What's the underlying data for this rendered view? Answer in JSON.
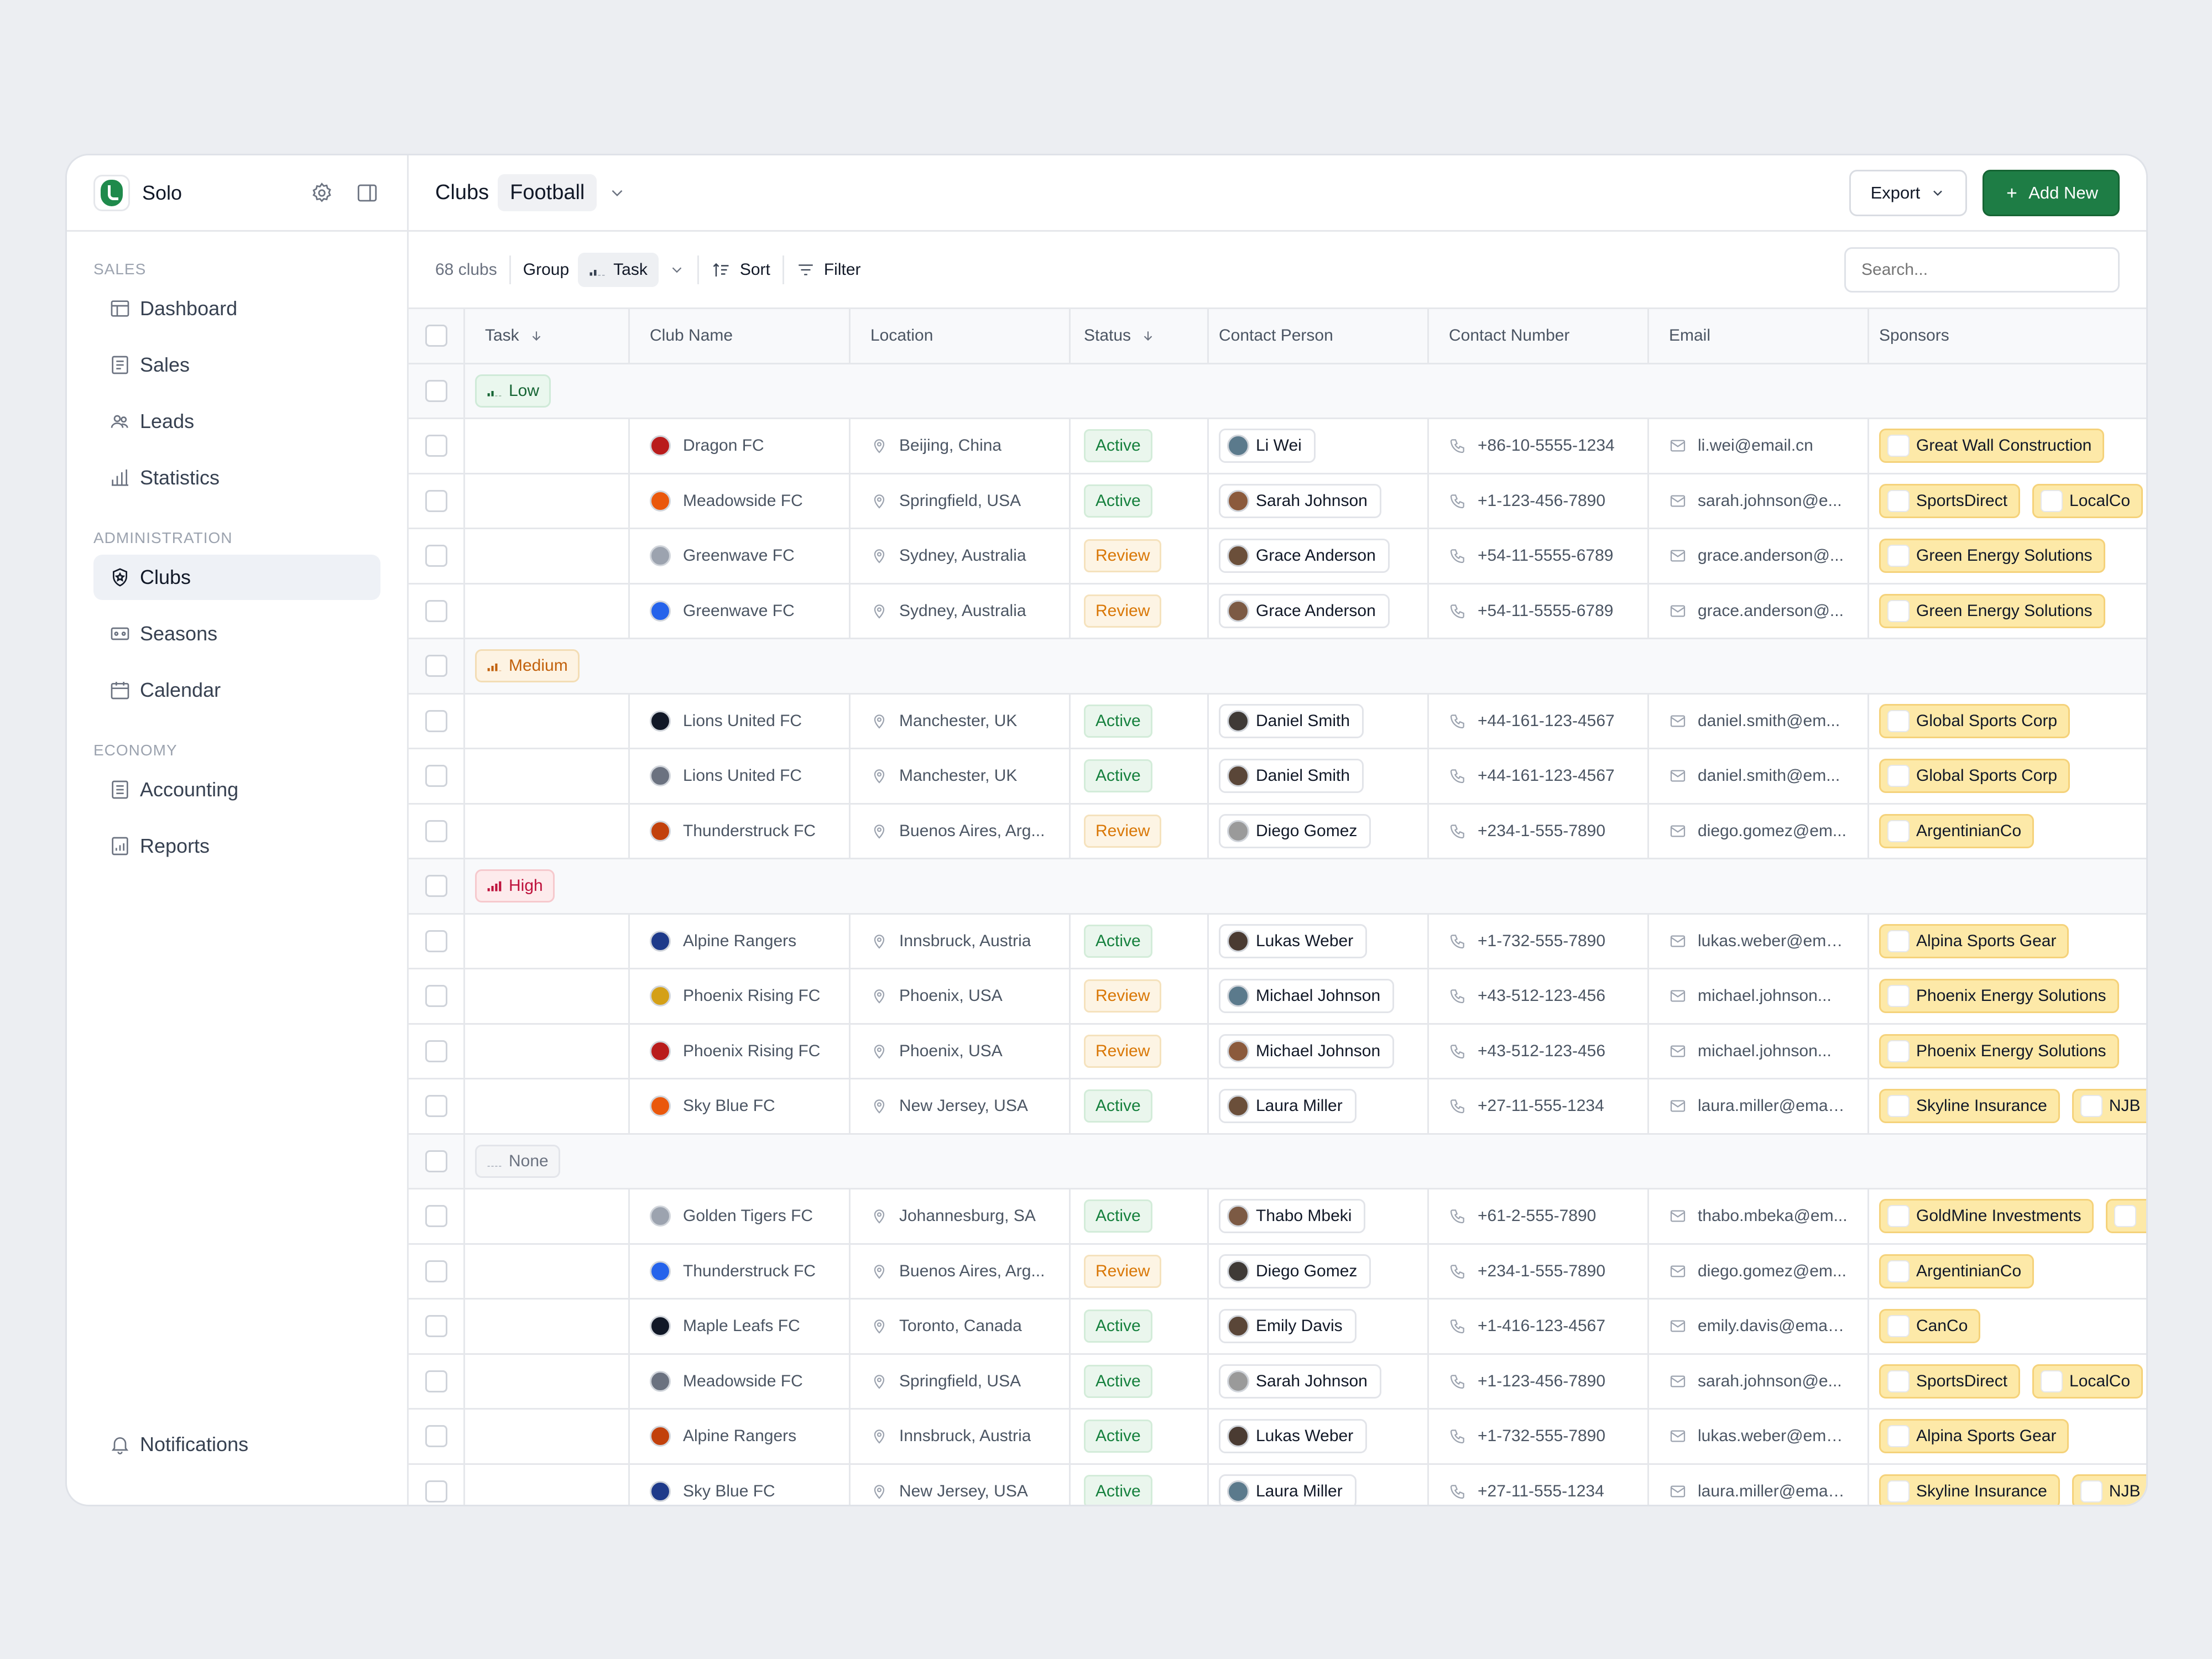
{
  "brand": {
    "name": "Solo"
  },
  "sidebar": {
    "sections": [
      {
        "label": "SALES",
        "items": [
          {
            "label": "Dashboard",
            "icon": "dashboard-icon",
            "active": false
          },
          {
            "label": "Sales",
            "icon": "sales-icon",
            "active": false
          },
          {
            "label": "Leads",
            "icon": "leads-icon",
            "active": false
          },
          {
            "label": "Statistics",
            "icon": "statistics-icon",
            "active": false
          }
        ]
      },
      {
        "label": "ADMINISTRATION",
        "items": [
          {
            "label": "Clubs",
            "icon": "shield-icon",
            "active": true
          },
          {
            "label": "Seasons",
            "icon": "seasons-icon",
            "active": false
          },
          {
            "label": "Calendar",
            "icon": "calendar-icon",
            "active": false
          }
        ]
      },
      {
        "label": "ECONOMY",
        "items": [
          {
            "label": "Accounting",
            "icon": "accounting-icon",
            "active": false
          },
          {
            "label": "Reports",
            "icon": "reports-icon",
            "active": false
          }
        ]
      }
    ],
    "notifications_label": "Notifications"
  },
  "topbar": {
    "crumb": "Clubs",
    "selected": "Football",
    "export_label": "Export",
    "add_label": "Add New"
  },
  "toolbar": {
    "count": "68 clubs",
    "group_label": "Group",
    "group_value": "Task",
    "sort_label": "Sort",
    "filter_label": "Filter",
    "search_placeholder": "Search..."
  },
  "columns": [
    "Task",
    "Club Name",
    "Location",
    "Status",
    "Contact Person",
    "Contact Number",
    "Email",
    "Sponsors"
  ],
  "groups": [
    {
      "label": "Low",
      "level": "low",
      "rows": [
        {
          "club": "Dragon FC",
          "location": "Beijing, China",
          "status": "Active",
          "person": "Li Wei",
          "phone": "+86-10-5555-1234",
          "email": "li.wei@email.cn",
          "sponsors": [
            "Great Wall Construction"
          ]
        },
        {
          "club": "Meadowside FC",
          "location": "Springfield, USA",
          "status": "Active",
          "person": "Sarah Johnson",
          "phone": "+1-123-456-7890",
          "email": "sarah.johnson@e...",
          "sponsors": [
            "SportsDirect",
            "LocalCo"
          ]
        },
        {
          "club": "Greenwave FC",
          "location": "Sydney, Australia",
          "status": "Review",
          "person": "Grace Anderson",
          "phone": "+54-11-5555-6789",
          "email": "grace.anderson@...",
          "sponsors": [
            "Green Energy Solutions"
          ]
        },
        {
          "club": "Greenwave FC",
          "location": "Sydney, Australia",
          "status": "Review",
          "person": "Grace Anderson",
          "phone": "+54-11-5555-6789",
          "email": "grace.anderson@...",
          "sponsors": [
            "Green Energy Solutions"
          ]
        }
      ]
    },
    {
      "label": "Medium",
      "level": "medium",
      "rows": [
        {
          "club": "Lions United FC",
          "location": "Manchester, UK",
          "status": "Active",
          "person": "Daniel Smith",
          "phone": "+44-161-123-4567",
          "email": "daniel.smith@em...",
          "sponsors": [
            "Global Sports Corp"
          ]
        },
        {
          "club": "Lions United FC",
          "location": "Manchester, UK",
          "status": "Active",
          "person": "Daniel Smith",
          "phone": "+44-161-123-4567",
          "email": "daniel.smith@em...",
          "sponsors": [
            "Global Sports Corp"
          ]
        },
        {
          "club": "Thunderstruck FC",
          "location": "Buenos Aires, Arg...",
          "status": "Review",
          "person": "Diego Gomez",
          "phone": "+234-1-555-7890",
          "email": "diego.gomez@em...",
          "sponsors": [
            "ArgentinianCo"
          ]
        }
      ]
    },
    {
      "label": "High",
      "level": "high",
      "rows": [
        {
          "club": "Alpine Rangers",
          "location": "Innsbruck, Austria",
          "status": "Active",
          "person": "Lukas Weber",
          "phone": "+1-732-555-7890",
          "email": "lukas.weber@ema...",
          "sponsors": [
            "Alpina Sports Gear"
          ]
        },
        {
          "club": "Phoenix Rising FC",
          "location": "Phoenix, USA",
          "status": "Review",
          "person": "Michael Johnson",
          "phone": "+43-512-123-456",
          "email": "michael.johnson...",
          "sponsors": [
            "Phoenix Energy Solutions"
          ]
        },
        {
          "club": "Phoenix Rising FC",
          "location": "Phoenix, USA",
          "status": "Review",
          "person": "Michael Johnson",
          "phone": "+43-512-123-456",
          "email": "michael.johnson...",
          "sponsors": [
            "Phoenix Energy Solutions"
          ]
        },
        {
          "club": "Sky Blue FC",
          "location": "New Jersey, USA",
          "status": "Active",
          "person": "Laura Miller",
          "phone": "+27-11-555-1234",
          "email": "laura.miller@email...",
          "sponsors": [
            "Skyline Insurance",
            "NJB"
          ]
        }
      ]
    },
    {
      "label": "None",
      "level": "none",
      "rows": [
        {
          "club": "Golden Tigers FC",
          "location": "Johannesburg, SA",
          "status": "Active",
          "person": "Thabo Mbeki",
          "phone": "+61-2-555-7890",
          "email": "thabo.mbeka@em...",
          "sponsors": [
            "GoldMine Investments",
            ""
          ]
        },
        {
          "club": "Thunderstruck FC",
          "location": "Buenos Aires, Arg...",
          "status": "Review",
          "person": "Diego Gomez",
          "phone": "+234-1-555-7890",
          "email": "diego.gomez@em...",
          "sponsors": [
            "ArgentinianCo"
          ]
        },
        {
          "club": "Maple Leafs FC",
          "location": "Toronto, Canada",
          "status": "Active",
          "person": "Emily Davis",
          "phone": "+1-416-123-4567",
          "email": "emily.davis@email...",
          "sponsors": [
            "CanCo"
          ]
        },
        {
          "club": "Meadowside FC",
          "location": "Springfield, USA",
          "status": "Active",
          "person": "Sarah Johnson",
          "phone": "+1-123-456-7890",
          "email": "sarah.johnson@e...",
          "sponsors": [
            "SportsDirect",
            "LocalCo"
          ]
        },
        {
          "club": "Alpine Rangers",
          "location": "Innsbruck, Austria",
          "status": "Active",
          "person": "Lukas Weber",
          "phone": "+1-732-555-7890",
          "email": "lukas.weber@ema...",
          "sponsors": [
            "Alpina Sports Gear"
          ]
        },
        {
          "club": "Sky Blue FC",
          "location": "New Jersey, USA",
          "status": "Active",
          "person": "Laura Miller",
          "phone": "+27-11-555-1234",
          "email": "laura.miller@email...",
          "sponsors": [
            "Skyline Insurance",
            "NJB"
          ]
        }
      ]
    }
  ],
  "colors": {
    "accent": "#1e7d45",
    "active": "#15803d",
    "review": "#d97706",
    "sponsor": "#fde9a8"
  }
}
